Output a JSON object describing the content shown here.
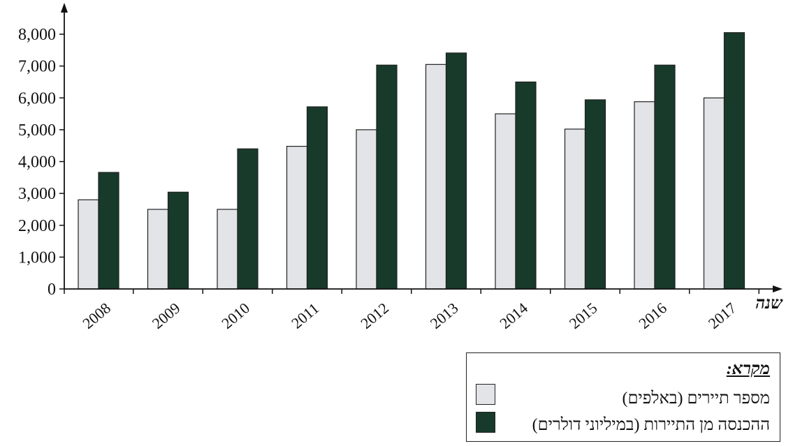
{
  "colors": {
    "series_1": "#e3e4e8",
    "series_2": "#173a2a",
    "axis": "#111111"
  },
  "chart_data": {
    "type": "bar",
    "categories": [
      "2008",
      "2009",
      "2010",
      "2011",
      "2012",
      "2013",
      "2014",
      "2015",
      "2016",
      "2017"
    ],
    "series": [
      {
        "name": "מספר תיירים (באלפים)",
        "values": [
          2800,
          2500,
          2500,
          4480,
          5000,
          7050,
          5500,
          5020,
          5880,
          6000
        ]
      },
      {
        "name": "ההכנסה מן התיירות (במיליוני דולרים)",
        "values": [
          3660,
          3040,
          4400,
          5720,
          7030,
          7410,
          6500,
          5940,
          7030,
          8050
        ]
      }
    ],
    "xlabel": "שנה",
    "ylabel": "",
    "ylim": [
      0,
      8000
    ],
    "yticks": [
      "0",
      "1,000",
      "2,000",
      "3,000",
      "4,000",
      "5,000",
      "6,000",
      "7,000",
      "8,000"
    ],
    "grid": false,
    "legend_position": "bottom-right"
  },
  "legend": {
    "title": "מקרא:",
    "items": [
      "מספר תיירים (באלפים)",
      "ההכנסה מן התיירות (במיליוני דולרים)"
    ]
  }
}
